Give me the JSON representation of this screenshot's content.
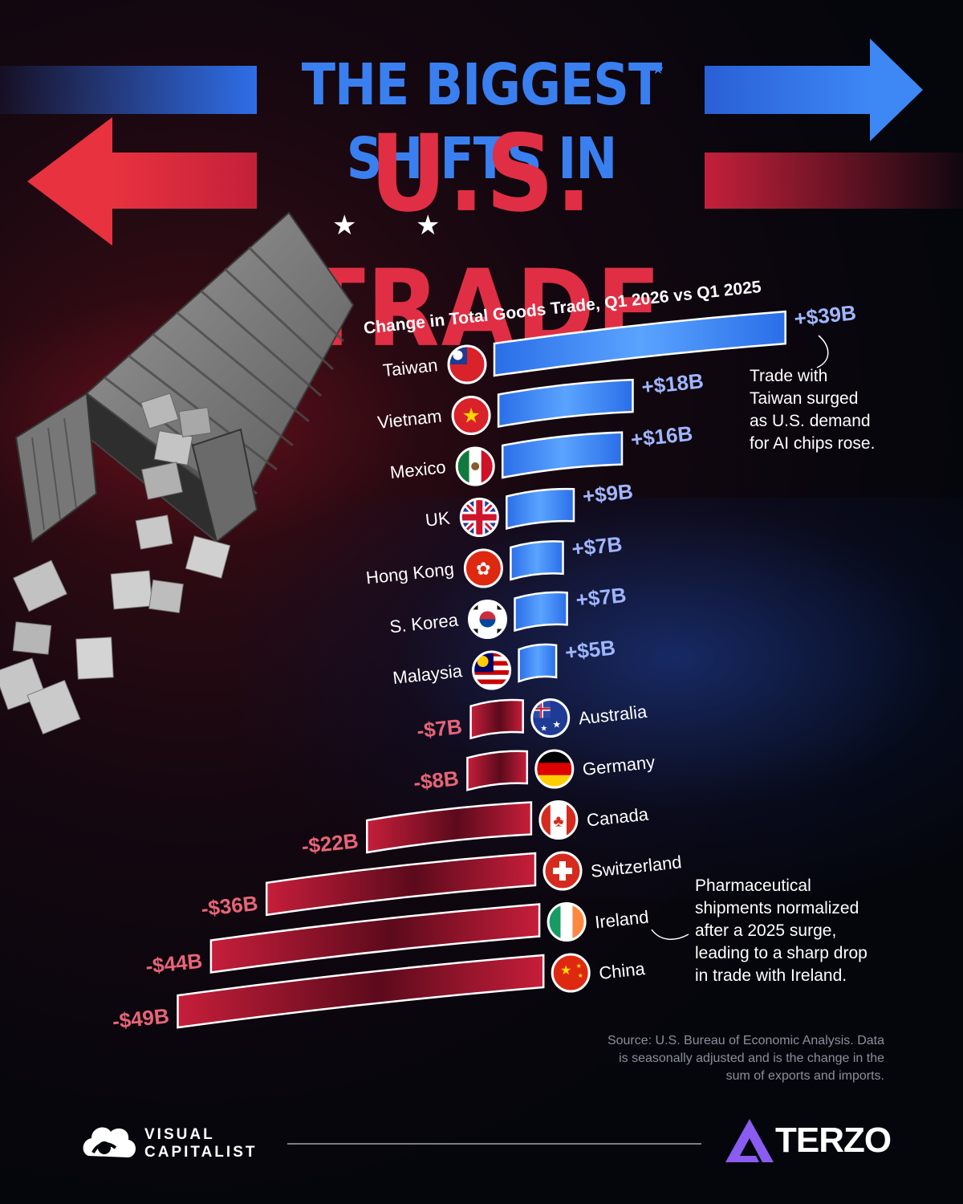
{
  "title": {
    "line1": "THE BIGGEST SHIFTS IN",
    "line2": "U.S. TRADE"
  },
  "chart_data": {
    "type": "bar",
    "title": "Change in Total Goods Trade, Q1 2026 vs Q1 2025",
    "unit": "$B",
    "categories": [
      "Taiwan",
      "Vietnam",
      "Mexico",
      "UK",
      "Hong Kong",
      "S. Korea",
      "Malaysia",
      "Australia",
      "Germany",
      "Canada",
      "Switzerland",
      "Ireland",
      "China"
    ],
    "values": [
      39,
      18,
      16,
      9,
      7,
      7,
      5,
      -7,
      -8,
      -22,
      -36,
      -44,
      -49
    ],
    "labels": [
      "+$39B",
      "+$18B",
      "+$16B",
      "+$9B",
      "+$7B",
      "+$7B",
      "+$5B",
      "-$7B",
      "-$8B",
      "-$22B",
      "-$36B",
      "-$44B",
      "-$49B"
    ],
    "flags": [
      "taiwan-flag",
      "vietnam-flag",
      "mexico-flag",
      "uk-flag",
      "hong-kong-flag",
      "south-korea-flag",
      "malaysia-flag",
      "australia-flag",
      "germany-flag",
      "canada-flag",
      "switzerland-flag",
      "ireland-flag",
      "china-flag"
    ],
    "colors": {
      "positive": "#2f7ff0",
      "negative": "#c8203c",
      "positive_label": "#9fb6ff",
      "negative_label": "#e86478"
    }
  },
  "annotations": {
    "taiwan": [
      "Trade with",
      "Taiwan surged",
      "as U.S. demand",
      "for AI chips rose."
    ],
    "ireland": [
      "Pharmaceutical",
      "shipments normalized",
      "after a 2025 surge,",
      "leading to a sharp drop",
      "in trade with Ireland."
    ]
  },
  "source": [
    "Source: U.S. Bureau of Economic Analysis. Data",
    "is seasonally adjusted and is the change in the",
    "sum of exports and imports."
  ],
  "footer": {
    "brand_line1": "VISUAL",
    "brand_line2": "CAPITALIST",
    "sponsor": "TERZO"
  }
}
